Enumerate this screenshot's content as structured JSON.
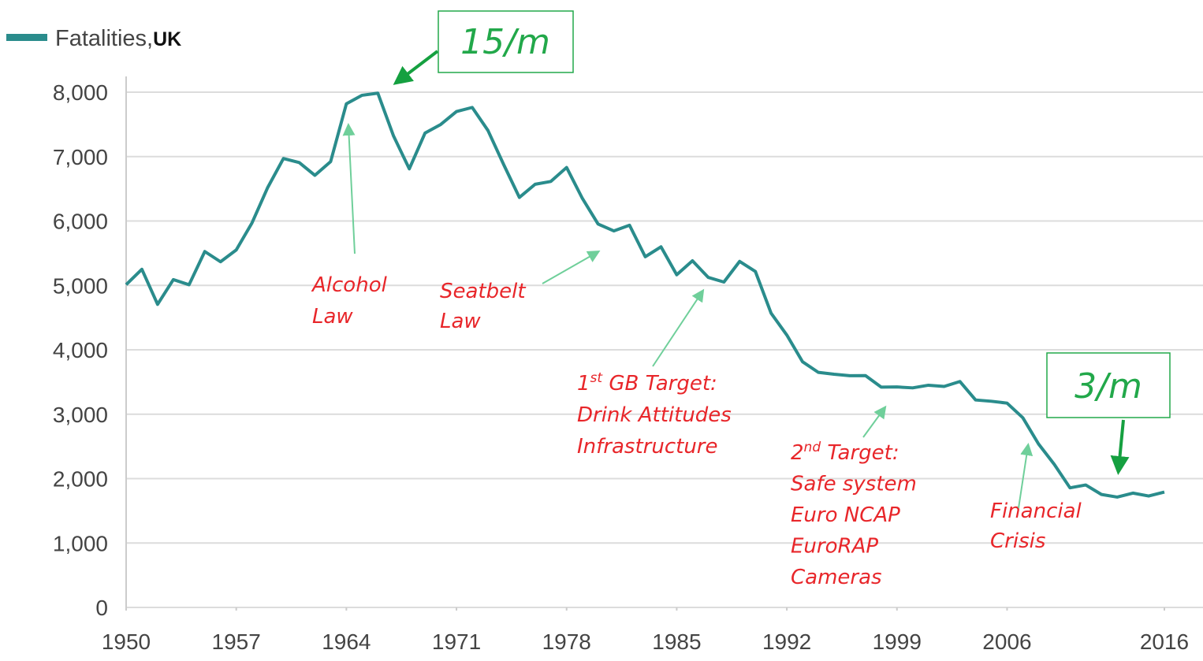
{
  "chart_data": {
    "type": "line",
    "legend_suffix": "UK",
    "x": [
      1950,
      1951,
      1952,
      1953,
      1954,
      1955,
      1956,
      1957,
      1958,
      1959,
      1960,
      1961,
      1962,
      1963,
      1964,
      1965,
      1966,
      1967,
      1968,
      1969,
      1970,
      1971,
      1972,
      1973,
      1974,
      1975,
      1976,
      1977,
      1978,
      1979,
      1980,
      1981,
      1982,
      1983,
      1984,
      1985,
      1986,
      1987,
      1988,
      1989,
      1990,
      1991,
      1992,
      1993,
      1994,
      1995,
      1996,
      1997,
      1998,
      1999,
      2000,
      2001,
      2002,
      2003,
      2004,
      2005,
      2006,
      2007,
      2008,
      2009,
      2010,
      2011,
      2012,
      2013,
      2014,
      2015,
      2016
    ],
    "series": [
      {
        "name": "Fatalities,",
        "color": "#2a8c8c",
        "values": [
          5012,
          5250,
          4706,
          5090,
          5010,
          5526,
          5367,
          5550,
          5970,
          6520,
          6970,
          6908,
          6709,
          6922,
          7820,
          7952,
          7985,
          7319,
          6810,
          7365,
          7499,
          7699,
          7763,
          7406,
          6876,
          6366,
          6570,
          6614,
          6831,
          6352,
          5953,
          5846,
          5934,
          5445,
          5599,
          5165,
          5382,
          5125,
          5052,
          5373,
          5217,
          4568,
          4229,
          3814,
          3650,
          3621,
          3598,
          3599,
          3421,
          3423,
          3409,
          3450,
          3431,
          3508,
          3221,
          3201,
          3172,
          2946,
          2538,
          2222,
          1857,
          1901,
          1754,
          1713,
          1775,
          1730,
          1792
        ]
      }
    ],
    "xlim": [
      1950,
      2016
    ],
    "xticks": [
      1950,
      1957,
      1964,
      1971,
      1978,
      1985,
      1992,
      1999,
      2006,
      2016
    ],
    "ylim": [
      0,
      8000
    ],
    "yticks": [
      0,
      {
        "value": 1000,
        "label": "1,000"
      },
      {
        "value": 2000,
        "label": "2,000"
      },
      {
        "value": 3000,
        "label": "3,000"
      },
      {
        "value": 4000,
        "label": "4,000"
      },
      {
        "value": 5000,
        "label": "5,000"
      },
      {
        "value": 6000,
        "label": "6,000"
      },
      {
        "value": 7000,
        "label": "7,000"
      },
      {
        "value": 8000,
        "label": "8,000"
      }
    ],
    "grid": true,
    "callouts": [
      "15/m",
      "3/m"
    ],
    "annotations": [
      {
        "lines": [
          "Alcohol",
          "Law"
        ]
      },
      {
        "lines": [
          "Seatbelt",
          "Law"
        ]
      },
      {
        "lines": [
          {
            "base": "1",
            "sup": "st",
            "rest": " GB Target:"
          },
          "Drink Attitudes",
          "Infrastructure"
        ]
      },
      {
        "lines": [
          {
            "base": "2",
            "sup": "nd",
            "rest": " Target:"
          },
          "Safe system",
          "Euro NCAP",
          "EuroRAP",
          "Cameras"
        ]
      },
      {
        "lines": [
          "Financial",
          "Crisis"
        ]
      }
    ]
  }
}
